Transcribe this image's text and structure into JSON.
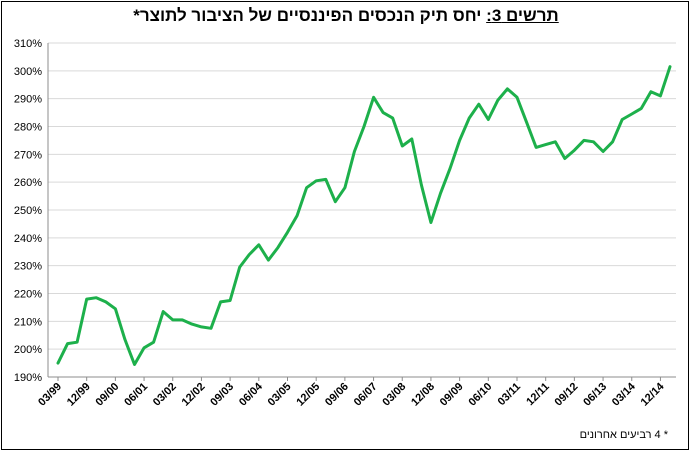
{
  "title": {
    "label": "תרשים 3:",
    "text": "יחס תיק הנכסים הפיננסיים של הציבור לתוצר*"
  },
  "footnote": "* 4 רביעים אחרונים",
  "chart_data": {
    "type": "line",
    "title": "תרשים 3: יחס תיק הנכסים הפיננסיים של הציבור לתוצר*",
    "xlabel": "",
    "ylabel": "",
    "ylim": [
      190,
      310
    ],
    "y_ticks": [
      "190%",
      "200%",
      "210%",
      "220%",
      "230%",
      "240%",
      "250%",
      "260%",
      "270%",
      "280%",
      "290%",
      "300%",
      "310%"
    ],
    "x_tick_labels": [
      "03/99",
      "12/99",
      "09/00",
      "06/01",
      "03/02",
      "12/02",
      "09/03",
      "06/04",
      "03/05",
      "12/05",
      "09/06",
      "06/07",
      "03/08",
      "12/08",
      "09/09",
      "06/10",
      "03/11",
      "12/11",
      "09/12",
      "06/13",
      "03/14",
      "12/14"
    ],
    "grid": true,
    "legend": "none",
    "line_color": "#1db04b",
    "series": [
      {
        "values": [
          195,
          202,
          202.5,
          218,
          218.5,
          217,
          214.5,
          203.5,
          194.5,
          200.5,
          202.5,
          213.5,
          210.5,
          210.5,
          209,
          208,
          207.5,
          217,
          217.5,
          229.5,
          234,
          237.5,
          232,
          236.5,
          242,
          248,
          258,
          260.5,
          261,
          253,
          258,
          271,
          280,
          290.5,
          285,
          283,
          273,
          275.5,
          259,
          245.5,
          256,
          265,
          275,
          283,
          288,
          282.5,
          289.5,
          293.5,
          290.5,
          281.5,
          272.5,
          273.5,
          274.5,
          268.5,
          271.5,
          275,
          274.5,
          271,
          274.5,
          282.5,
          284.5,
          286.5,
          292.5,
          291,
          301.5
        ]
      }
    ]
  }
}
